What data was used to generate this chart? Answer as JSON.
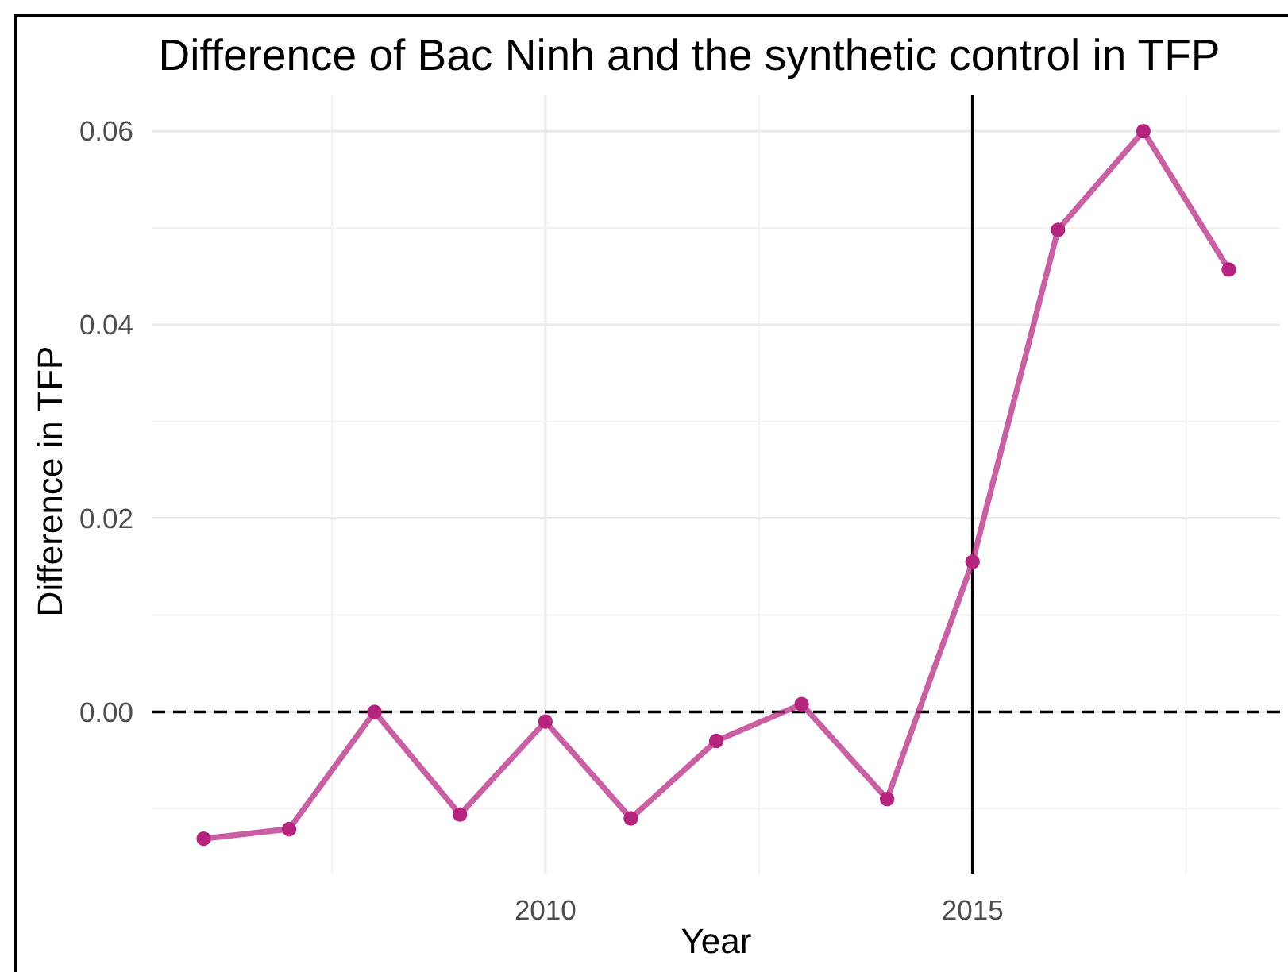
{
  "chart_data": {
    "type": "line",
    "title": "Difference of Bac Ninh and the synthetic control in TFP",
    "xlabel": "Year",
    "ylabel": "Difference in TFP",
    "x": [
      2006,
      2007,
      2008,
      2009,
      2010,
      2011,
      2012,
      2013,
      2014,
      2015,
      2016,
      2017,
      2018
    ],
    "series": [
      {
        "color": "#b5237f",
        "values": [
          -0.0131,
          -0.0121,
          0.0,
          -0.0106,
          -0.001,
          -0.011,
          -0.003,
          0.0008,
          -0.009,
          0.0155,
          0.0498,
          0.06,
          0.0457
        ]
      }
    ],
    "xlim": [
      2005.4,
      2018.6
    ],
    "ylim": [
      -0.0167,
      0.0637
    ],
    "xticks": [
      {
        "value": 2007.5,
        "label": null
      },
      2010,
      {
        "value": 2012.5,
        "label": null
      },
      2015,
      {
        "value": 2017.5,
        "label": null
      }
    ],
    "yticks": [
      {
        "value": -0.01,
        "label": null
      },
      {
        "value": 0,
        "label": "0.00"
      },
      {
        "value": 0.01,
        "label": null
      },
      {
        "value": 0.02,
        "label": "0.02"
      },
      {
        "value": 0.03,
        "label": null
      },
      {
        "value": 0.04,
        "label": "0.04"
      },
      {
        "value": 0.05,
        "label": null
      },
      {
        "value": 0.06,
        "label": "0.06"
      }
    ],
    "grid": true,
    "marker": "circle",
    "line_style": "solid",
    "ref_lines": [
      {
        "axis": "y",
        "value": 0,
        "line_style": "dashed",
        "color": "#000000"
      },
      {
        "axis": "x",
        "value": 2015,
        "color": "#000000"
      }
    ]
  }
}
